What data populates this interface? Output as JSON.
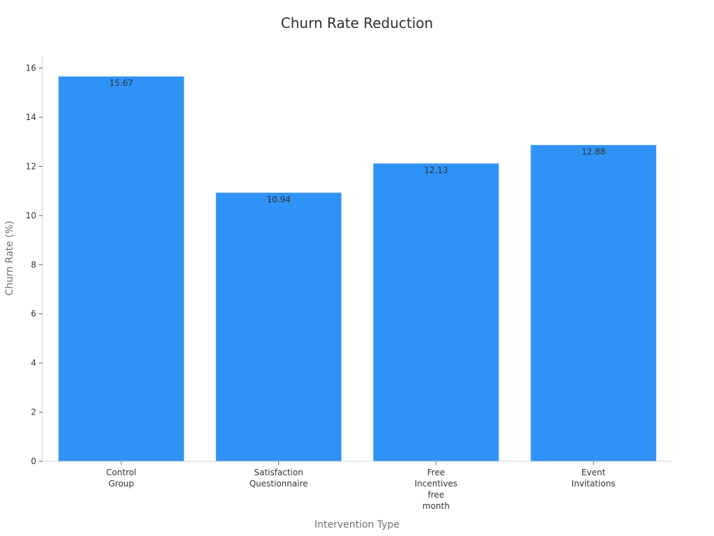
{
  "chart_data": {
    "type": "bar",
    "title": "Churn Rate Reduction",
    "xlabel": "Intervention Type",
    "ylabel": "Churn Rate (%)",
    "categories": [
      "Control\nGroup",
      "Satisfaction\nQuestionnaire",
      "Free\nIncentives\nfree\nmonth",
      "Event\nInvitations"
    ],
    "values": [
      15.67,
      10.94,
      12.13,
      12.88
    ],
    "data_labels": [
      "15.67",
      "10.94",
      "12.13",
      "12.88"
    ],
    "y_ticks": [
      0,
      2,
      4,
      6,
      8,
      10,
      12,
      14,
      16
    ],
    "ylim": [
      0,
      16.5
    ],
    "grid": false,
    "legend": "none",
    "colors": {
      "bar": "#2f92f7",
      "bar_edge": "#d8ecff",
      "axis": "#cfcfcf",
      "tick": "#5f5f5f"
    }
  }
}
